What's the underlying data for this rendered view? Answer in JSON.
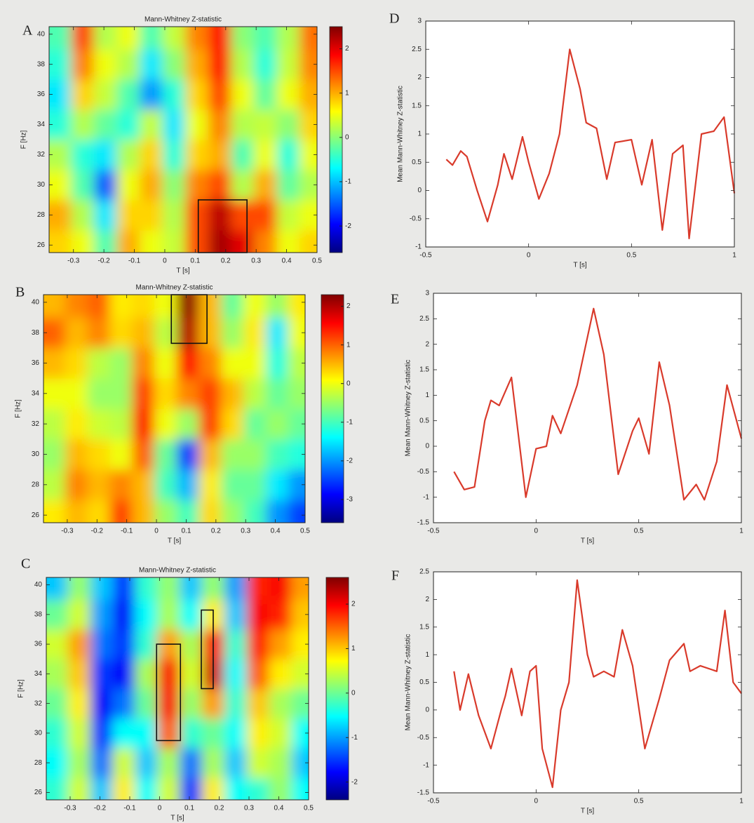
{
  "chart_data": [
    {
      "type": "heatmap",
      "panel": "A",
      "title": "Mann-Whitney Z-statistic",
      "xlabel": "T [s]",
      "ylabel": "F [Hz]",
      "x": [
        -0.345,
        -0.27,
        -0.195,
        -0.12,
        -0.045,
        0.03,
        0.105,
        0.18,
        0.255,
        0.33,
        0.405,
        0.48
      ],
      "y": [
        26,
        28,
        30,
        32,
        34,
        36,
        38,
        40
      ],
      "z": [
        [
          0.8,
          0.5,
          -0.3,
          1.0,
          0.5,
          0.3,
          1.5,
          2.3,
          2.0,
          1.2,
          0.5,
          0.8
        ],
        [
          1.0,
          0.2,
          -0.8,
          0.8,
          0.8,
          0.2,
          1.5,
          2.2,
          1.5,
          1.5,
          0.3,
          0.5
        ],
        [
          0.5,
          -0.3,
          -1.5,
          0.5,
          1.0,
          0.0,
          1.2,
          1.5,
          0.2,
          1.0,
          -0.2,
          0.2
        ],
        [
          0.2,
          -0.5,
          -0.8,
          0.2,
          0.8,
          -0.5,
          0.8,
          1.0,
          -0.3,
          0.5,
          -0.5,
          0.5
        ],
        [
          -0.5,
          0.2,
          -0.2,
          -0.5,
          0.3,
          -0.8,
          0.5,
          1.2,
          0.2,
          0.3,
          0.0,
          0.8
        ],
        [
          -0.8,
          0.8,
          0.3,
          -0.3,
          -1.2,
          -0.5,
          0.8,
          1.5,
          0.5,
          -0.2,
          0.5,
          1.0
        ],
        [
          -0.5,
          1.2,
          0.5,
          0.2,
          -0.8,
          0.0,
          1.0,
          1.8,
          0.2,
          -0.5,
          0.3,
          1.2
        ],
        [
          -0.3,
          1.5,
          0.2,
          0.5,
          -0.3,
          0.3,
          1.2,
          1.8,
          0.0,
          -0.3,
          0.2,
          1.3
        ]
      ],
      "xlim": [
        -0.38,
        0.5
      ],
      "ylim": [
        25.5,
        40.5
      ],
      "xticks": [
        -0.3,
        -0.2,
        -0.1,
        0,
        0.1,
        0.2,
        0.3,
        0.4,
        0.5
      ],
      "yticks": [
        26,
        28,
        30,
        32,
        34,
        36,
        38,
        40
      ],
      "colorbar": {
        "lim": [
          -2.6,
          2.5
        ],
        "ticks": [
          -2,
          -1,
          0,
          1,
          2
        ]
      },
      "boxes": [
        {
          "x": [
            0.11,
            0.27
          ],
          "y": [
            25.5,
            29
          ]
        }
      ]
    },
    {
      "type": "line",
      "panel": "D",
      "xlabel": "T [s]",
      "ylabel": "Mean Mann-Whitney Z-statistic",
      "color": "#d93a2b",
      "x": [
        -0.4,
        -0.37,
        -0.33,
        -0.3,
        -0.25,
        -0.2,
        -0.15,
        -0.12,
        -0.08,
        -0.06,
        -0.03,
        0,
        0.05,
        0.1,
        0.15,
        0.2,
        0.25,
        0.28,
        0.33,
        0.38,
        0.42,
        0.5,
        0.55,
        0.6,
        0.65,
        0.7,
        0.75,
        0.78,
        0.84,
        0.9,
        0.95,
        1.0
      ],
      "values": [
        0.55,
        0.45,
        0.7,
        0.6,
        0,
        -0.55,
        0.1,
        0.65,
        0.2,
        0.5,
        0.95,
        0.5,
        -0.15,
        0.3,
        1.0,
        2.5,
        1.8,
        1.2,
        1.1,
        0.2,
        0.85,
        0.9,
        0.1,
        0.9,
        -0.7,
        0.65,
        0.8,
        -0.85,
        1.0,
        1.05,
        1.3,
        -0.05
      ],
      "xlim": [
        -0.5,
        1
      ],
      "ylim": [
        -1,
        3
      ],
      "xticks": [
        -0.5,
        0,
        0.5,
        1
      ],
      "yticks": [
        -1,
        -0.5,
        0,
        0.5,
        1,
        1.5,
        2,
        2.5,
        3
      ]
    },
    {
      "type": "heatmap",
      "panel": "B",
      "title": "Mann-Whitney Z-statistic",
      "xlabel": "T [s]",
      "ylabel": "F [Hz]",
      "x": [
        -0.345,
        -0.27,
        -0.195,
        -0.12,
        -0.045,
        0.03,
        0.105,
        0.18,
        0.255,
        0.33,
        0.405,
        0.48
      ],
      "y": [
        26,
        28,
        30,
        32,
        34,
        36,
        38,
        40
      ],
      "z": [
        [
          0.2,
          0.5,
          0.3,
          1.2,
          0.5,
          -0.5,
          -1.0,
          0.3,
          -0.5,
          -1.0,
          -2.0,
          -2.5
        ],
        [
          -0.3,
          0.8,
          0.5,
          0.8,
          0.5,
          -1.0,
          -1.8,
          0.2,
          -0.8,
          -0.8,
          -1.5,
          -2.0
        ],
        [
          -0.5,
          0.5,
          0.3,
          0.0,
          1.0,
          -0.8,
          -2.5,
          0.5,
          -0.5,
          -0.5,
          -1.0,
          -1.2
        ],
        [
          -0.3,
          0.2,
          -0.2,
          -0.3,
          1.5,
          0.0,
          -0.5,
          1.2,
          0.3,
          -0.8,
          -0.5,
          -0.8
        ],
        [
          0.0,
          0.0,
          -0.5,
          -0.5,
          1.2,
          0.3,
          0.8,
          1.2,
          0.5,
          -0.3,
          -0.8,
          -0.5
        ],
        [
          0.5,
          0.3,
          -0.3,
          -0.5,
          0.8,
          0.0,
          1.5,
          0.8,
          0.0,
          0.0,
          -1.2,
          -0.3
        ],
        [
          1.0,
          0.5,
          0.8,
          0.3,
          0.5,
          -0.3,
          2.0,
          0.5,
          -0.5,
          0.2,
          -1.5,
          0.0
        ],
        [
          0.5,
          0.8,
          1.0,
          0.2,
          0.3,
          0.0,
          2.2,
          0.5,
          -0.8,
          0.0,
          -0.5,
          0.2
        ]
      ],
      "xlim": [
        -0.38,
        0.5
      ],
      "ylim": [
        25.5,
        40.5
      ],
      "xticks": [
        -0.3,
        -0.2,
        -0.1,
        0,
        0.1,
        0.2,
        0.3,
        0.4,
        0.5
      ],
      "yticks": [
        26,
        28,
        30,
        32,
        34,
        36,
        38,
        40
      ],
      "colorbar": {
        "lim": [
          -3.6,
          2.3
        ],
        "ticks": [
          -3,
          -2,
          -1,
          0,
          1,
          2
        ]
      },
      "boxes": [
        {
          "x": [
            0.05,
            0.17
          ],
          "y": [
            37.3,
            40.5
          ]
        }
      ]
    },
    {
      "type": "line",
      "panel": "E",
      "xlabel": "T [s]",
      "ylabel": "Mean Mann-Whitney Z-statistic",
      "color": "#d93a2b",
      "x": [
        -0.4,
        -0.35,
        -0.3,
        -0.25,
        -0.22,
        -0.18,
        -0.12,
        -0.05,
        0,
        0.05,
        0.08,
        0.12,
        0.2,
        0.28,
        0.33,
        0.4,
        0.47,
        0.5,
        0.55,
        0.6,
        0.65,
        0.72,
        0.78,
        0.82,
        0.88,
        0.93,
        1.0
      ],
      "values": [
        -0.5,
        -0.85,
        -0.8,
        0.5,
        0.9,
        0.8,
        1.35,
        -1.0,
        -0.05,
        0,
        0.6,
        0.25,
        1.2,
        2.7,
        1.8,
        -0.55,
        0.3,
        0.55,
        -0.15,
        1.65,
        0.8,
        -1.05,
        -0.75,
        -1.05,
        -0.3,
        1.2,
        0.15
      ],
      "xlim": [
        -0.5,
        1
      ],
      "ylim": [
        -1.5,
        3
      ],
      "xticks": [
        -0.5,
        0,
        0.5,
        1
      ],
      "yticks": [
        -1.5,
        -1,
        -0.5,
        0,
        0.5,
        1,
        1.5,
        2,
        2.5,
        3
      ]
    },
    {
      "type": "heatmap",
      "panel": "C",
      "title": "Mann-Whitney Z-statistic",
      "xlabel": "T [s]",
      "ylabel": "F [Hz]",
      "x": [
        -0.345,
        -0.27,
        -0.195,
        -0.12,
        -0.045,
        0.03,
        0.105,
        0.18,
        0.255,
        0.33,
        0.405,
        0.48
      ],
      "y": [
        26,
        28,
        30,
        32,
        34,
        36,
        38,
        40
      ],
      "z": [
        [
          -0.3,
          0.5,
          -0.8,
          0.8,
          -0.5,
          0.5,
          -1.5,
          0.8,
          -0.5,
          -0.3,
          0.2,
          -0.5
        ],
        [
          -0.5,
          0.3,
          -1.2,
          0.5,
          -0.8,
          0.3,
          -1.2,
          0.3,
          -0.8,
          0.5,
          0.3,
          -0.8
        ],
        [
          -0.3,
          0.5,
          -1.5,
          -0.5,
          -0.5,
          1.5,
          -0.3,
          0.0,
          -0.5,
          0.8,
          0.5,
          -0.5
        ],
        [
          0.0,
          0.8,
          -1.8,
          -1.2,
          0.0,
          2.0,
          0.2,
          1.2,
          -0.3,
          1.0,
          0.3,
          0.0
        ],
        [
          0.3,
          1.0,
          -1.5,
          -1.8,
          0.3,
          2.0,
          0.5,
          2.2,
          -0.5,
          1.5,
          0.8,
          0.5
        ],
        [
          0.5,
          1.2,
          -1.2,
          -1.5,
          -0.3,
          1.2,
          0.3,
          2.0,
          -0.3,
          1.8,
          1.2,
          0.8
        ],
        [
          0.0,
          0.5,
          -1.0,
          -1.8,
          -0.5,
          0.3,
          -0.5,
          0.8,
          -0.8,
          2.0,
          1.8,
          1.0
        ],
        [
          -0.8,
          0.2,
          -0.8,
          -1.5,
          -0.3,
          0.2,
          -0.8,
          0.2,
          -1.0,
          1.8,
          2.0,
          1.2
        ]
      ],
      "xlim": [
        -0.38,
        0.5
      ],
      "ylim": [
        25.5,
        40.5
      ],
      "xticks": [
        -0.3,
        -0.2,
        -0.1,
        0,
        0.1,
        0.2,
        0.3,
        0.4,
        0.5
      ],
      "yticks": [
        26,
        28,
        30,
        32,
        34,
        36,
        38,
        40
      ],
      "colorbar": {
        "lim": [
          -2.4,
          2.6
        ],
        "ticks": [
          -2,
          -1,
          0,
          1,
          2
        ]
      },
      "boxes": [
        {
          "x": [
            -0.01,
            0.07
          ],
          "y": [
            29.5,
            36
          ]
        },
        {
          "x": [
            0.14,
            0.18
          ],
          "y": [
            33,
            38.3
          ]
        }
      ]
    },
    {
      "type": "line",
      "panel": "F",
      "xlabel": "T [s]",
      "ylabel": "Mean Mann-Whitney Z-statistic",
      "color": "#d93a2b",
      "x": [
        -0.4,
        -0.37,
        -0.33,
        -0.28,
        -0.22,
        -0.17,
        -0.15,
        -0.12,
        -0.07,
        -0.03,
        0,
        0.03,
        0.08,
        0.12,
        0.16,
        0.2,
        0.25,
        0.28,
        0.33,
        0.38,
        0.42,
        0.47,
        0.53,
        0.6,
        0.65,
        0.72,
        0.75,
        0.8,
        0.88,
        0.92,
        0.96,
        1.0
      ],
      "values": [
        0.7,
        0.0,
        0.65,
        -0.1,
        -0.7,
        0.0,
        0.25,
        0.75,
        -0.1,
        0.7,
        0.8,
        -0.7,
        -1.4,
        0.0,
        0.5,
        2.35,
        1.0,
        0.6,
        0.7,
        0.6,
        1.45,
        0.8,
        -0.7,
        0.2,
        0.9,
        1.2,
        0.7,
        0.8,
        0.7,
        1.8,
        0.5,
        0.3
      ],
      "xlim": [
        -0.5,
        1
      ],
      "ylim": [
        -1.5,
        2.5
      ],
      "xticks": [
        -0.5,
        0,
        0.5,
        1
      ],
      "yticks": [
        -1.5,
        -1,
        -0.5,
        0,
        0.5,
        1,
        1.5,
        2,
        2.5
      ]
    }
  ]
}
